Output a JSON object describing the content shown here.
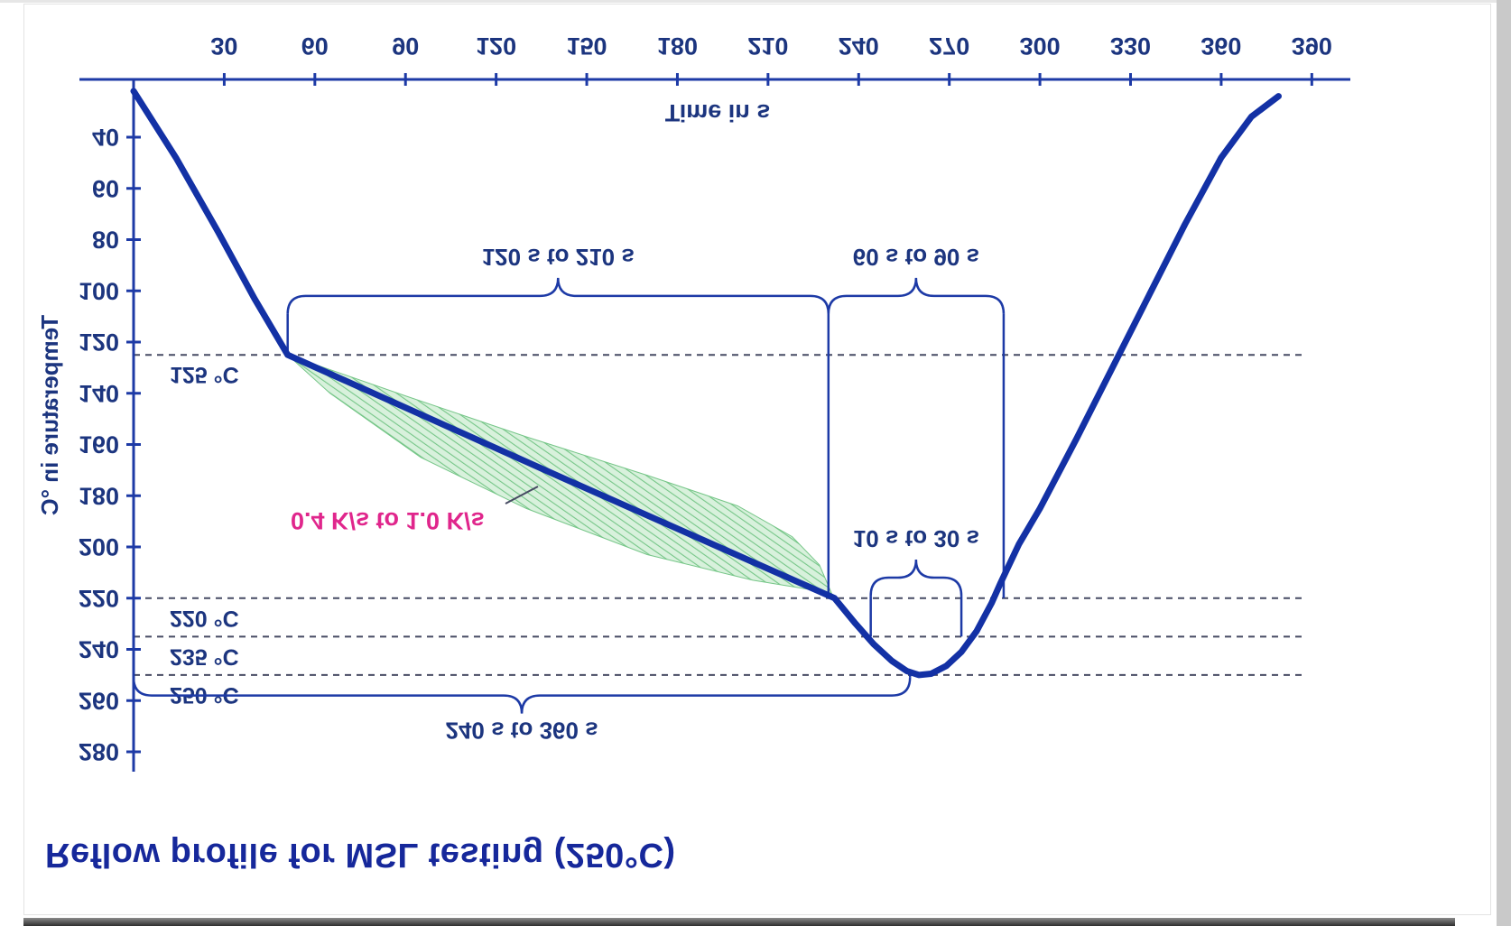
{
  "colors": {
    "curve": "#1331a5",
    "axis": "#1d3aa6",
    "axis_text": "#1c357f",
    "dashed": "#474b63",
    "band_fill": "#d8f1dc",
    "band_hatch": "#76c688",
    "ramp_label": "#e0268c",
    "title": "#16289b"
  },
  "chart_data": {
    "type": "line",
    "title": "Reflow profile for MSL testing (250°C)",
    "xlabel": "Time in s",
    "ylabel": "Temperature in °C",
    "x_ticks": [
      30,
      60,
      90,
      120,
      150,
      180,
      210,
      240,
      270,
      300,
      330,
      360,
      390
    ],
    "y_ticks": [
      40,
      60,
      80,
      100,
      120,
      140,
      160,
      180,
      200,
      220,
      240,
      260,
      280
    ],
    "xlim": [
      0,
      400
    ],
    "ylim": [
      20,
      290
    ],
    "grid": false,
    "display_flipped_vertically": true,
    "series": [
      {
        "name": "reflow-profile",
        "points": [
          [
            0,
            22
          ],
          [
            14,
            48
          ],
          [
            28,
            77
          ],
          [
            40,
            103
          ],
          [
            51,
            125
          ],
          [
            140,
            172
          ],
          [
            232,
            220
          ],
          [
            239,
            230
          ],
          [
            245,
            238
          ],
          [
            251,
            244.5
          ],
          [
            256,
            248.5
          ],
          [
            260,
            250
          ],
          [
            264,
            249.5
          ],
          [
            269,
            246.5
          ],
          [
            274,
            241
          ],
          [
            279,
            233
          ],
          [
            284,
            222
          ],
          [
            287,
            214
          ],
          [
            293,
            199
          ],
          [
            300,
            185
          ],
          [
            312,
            158
          ],
          [
            324,
            130
          ],
          [
            336,
            102
          ],
          [
            348,
            74
          ],
          [
            360,
            48
          ],
          [
            370,
            32
          ],
          [
            379,
            24
          ]
        ]
      }
    ],
    "band": {
      "label": "0.4 K/s to 1.0 K/s",
      "polygon": [
        [
          51,
          125
        ],
        [
          90,
          141
        ],
        [
          130,
          157
        ],
        [
          170,
          172
        ],
        [
          200,
          184
        ],
        [
          218,
          196
        ],
        [
          227,
          207
        ],
        [
          231,
          218
        ],
        [
          205,
          213
        ],
        [
          170,
          203
        ],
        [
          130,
          185
        ],
        [
          95,
          165
        ],
        [
          65,
          140
        ]
      ]
    },
    "reference_lines": [
      {
        "temp": 125,
        "label": "125 °C"
      },
      {
        "temp": 220,
        "label": "220 °C"
      },
      {
        "temp": 235,
        "label": "235 °C"
      },
      {
        "temp": 250,
        "label": "250 °C"
      }
    ],
    "brackets": [
      {
        "label": "120 s to 210 s",
        "t1": 51,
        "t2": 230,
        "at": 102,
        "nub": "cooler",
        "drops": [
          {
            "t": 51,
            "toT": 125
          }
        ]
      },
      {
        "label": "60 s to 90 s",
        "t1": 230,
        "t2": 288,
        "at": 102,
        "nub": "cooler",
        "drops": [
          {
            "t": 230,
            "toT": 220
          },
          {
            "t": 288,
            "toT": 220
          }
        ]
      },
      {
        "label": "10 s to 30 s",
        "t1": 244,
        "t2": 274,
        "at": 212,
        "nub": "cooler",
        "drops": [
          {
            "t": 244,
            "toT": 235
          },
          {
            "t": 274,
            "toT": 235
          }
        ]
      },
      {
        "label": "240 s to 360 s",
        "t1": 0,
        "t2": 257,
        "at": 258,
        "nub": "hotter",
        "drops": [
          {
            "t": 257,
            "toT": 250
          }
        ]
      }
    ]
  }
}
